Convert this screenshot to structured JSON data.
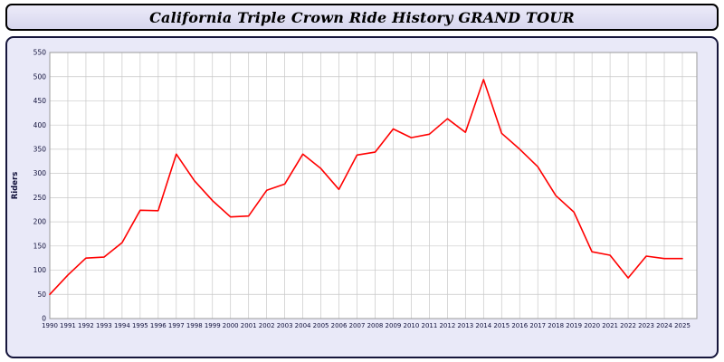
{
  "title": "California Triple Crown Ride History GRAND TOUR",
  "colors": {
    "panel_background": "#e9e9f8",
    "title_background": "#dedcf0",
    "panel_border": "#16163c",
    "plot_background": "#ffffff",
    "grid": "#c8c8c8",
    "plot_border": "#9a9a9a",
    "line": "#ff0000",
    "axis_text": "#10103a"
  },
  "chart_data": {
    "type": "line",
    "title": "California Triple Crown Ride History GRAND TOUR",
    "xlabel": "",
    "ylabel": "Riders",
    "ylim": [
      0,
      550
    ],
    "ytick_step": 50,
    "grid": true,
    "legend_position": "none",
    "x": [
      1990,
      1991,
      1992,
      1993,
      1994,
      1995,
      1996,
      1997,
      1998,
      1999,
      2000,
      2001,
      2002,
      2003,
      2004,
      2005,
      2006,
      2007,
      2008,
      2009,
      2010,
      2011,
      2012,
      2013,
      2014,
      2015,
      2016,
      2017,
      2018,
      2019,
      2020,
      2021,
      2022,
      2023,
      2024,
      2025
    ],
    "series": [
      {
        "name": "Riders",
        "color": "#ff0000",
        "values": [
          50,
          90,
          125,
          127,
          157,
          224,
          223,
          340,
          285,
          244,
          210,
          212,
          265,
          278,
          340,
          310,
          267,
          338,
          344,
          392,
          374,
          381,
          413,
          385,
          494,
          383,
          350,
          314,
          254,
          220,
          138,
          131,
          84,
          129,
          124,
          124
        ]
      }
    ]
  }
}
